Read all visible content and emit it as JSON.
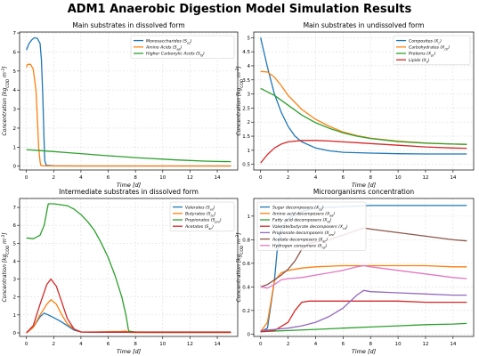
{
  "title": "ADM1 Anaerobic Digestion Model Simulation Results",
  "colors": {
    "blue": "#1f77b4",
    "orange": "#ff7f0e",
    "green": "#2ca02c",
    "red": "#d62728",
    "purple": "#9467bd",
    "brown": "#8c564b",
    "pink": "#e377c2",
    "gray": "#7f7f7f"
  },
  "chart_data": [
    {
      "type": "line",
      "title": "Main substrates in dissolved form",
      "xlabel": "Time [d]",
      "ylabel": "Concentration [kg_COD m^-3]",
      "xlim": [
        -0.5,
        15.5
      ],
      "ylim": [
        -0.2,
        7.05
      ],
      "xticks": [
        0,
        2,
        4,
        6,
        8,
        10,
        12,
        14
      ],
      "yticks": [
        0,
        1,
        2,
        3,
        4,
        5,
        6,
        7
      ],
      "grid": true,
      "legend": "top-right",
      "series": [
        {
          "name": "Monosaccharides (S_su)",
          "color": "#1f77b4",
          "x": [
            0,
            0.2,
            0.4,
            0.6,
            0.8,
            1.0,
            1.1,
            1.2,
            1.3,
            1.35,
            1.45,
            2,
            4,
            6,
            8,
            10,
            12,
            14,
            15
          ],
          "y": [
            6.1,
            6.45,
            6.65,
            6.75,
            6.72,
            6.45,
            5.6,
            3.8,
            1.2,
            0.3,
            0.05,
            0.02,
            0.01,
            0.01,
            0.01,
            0.01,
            0.01,
            0.01,
            0.01
          ]
        },
        {
          "name": "Amino Acids (S_aa)",
          "color": "#ff7f0e",
          "x": [
            0,
            0.1,
            0.3,
            0.5,
            0.7,
            0.8,
            0.9,
            1.0,
            1.05,
            1.2,
            2,
            4,
            6,
            8,
            10,
            12,
            14,
            15
          ],
          "y": [
            5.2,
            5.35,
            5.35,
            5.1,
            4.0,
            2.6,
            1.0,
            0.25,
            0.05,
            0.02,
            0.01,
            0.01,
            0.01,
            0.01,
            0.01,
            0.01,
            0.01,
            0.01
          ]
        },
        {
          "name": "Higher Carboxylic Acids (S_fa)",
          "color": "#2ca02c",
          "x": [
            0,
            1,
            2,
            3,
            4,
            5,
            6,
            7,
            8,
            9,
            10,
            11,
            12,
            13,
            14,
            15
          ],
          "y": [
            0.87,
            0.82,
            0.77,
            0.71,
            0.66,
            0.6,
            0.55,
            0.5,
            0.45,
            0.41,
            0.37,
            0.33,
            0.3,
            0.27,
            0.25,
            0.24
          ]
        }
      ]
    },
    {
      "type": "line",
      "title": "Main substrates in undissolved form",
      "xlabel": "Time [d]",
      "ylabel": "Concentration [kg_COD m^-3]",
      "xlim": [
        -0.5,
        15.5
      ],
      "ylim": [
        0.3,
        5.2
      ],
      "xticks": [
        0,
        2,
        4,
        6,
        8,
        10,
        12,
        14
      ],
      "yticks": [
        0.5,
        1,
        1.5,
        2,
        2.5,
        3,
        3.5,
        4,
        4.5,
        5
      ],
      "grid": true,
      "legend": "top-right",
      "series": [
        {
          "name": "Composites (X_c)",
          "color": "#1f77b4",
          "x": [
            0,
            0.5,
            1,
            1.5,
            2,
            2.5,
            3,
            4,
            5,
            6,
            8,
            10,
            12,
            14,
            15
          ],
          "y": [
            5.0,
            3.95,
            3.0,
            2.35,
            1.85,
            1.5,
            1.3,
            1.08,
            0.98,
            0.93,
            0.9,
            0.88,
            0.87,
            0.87,
            0.87
          ]
        },
        {
          "name": "Carbohydrates (X_ch)",
          "color": "#ff7f0e",
          "x": [
            0,
            0.5,
            1,
            1.5,
            2,
            3,
            4,
            5,
            6,
            7,
            8,
            10,
            12,
            14,
            15
          ],
          "y": [
            3.8,
            3.78,
            3.6,
            3.3,
            2.95,
            2.45,
            2.1,
            1.85,
            1.65,
            1.52,
            1.43,
            1.32,
            1.26,
            1.22,
            1.21
          ]
        },
        {
          "name": "Proteins (X_pr)",
          "color": "#2ca02c",
          "x": [
            0,
            1,
            2,
            3,
            4,
            5,
            6,
            7,
            8,
            10,
            12,
            14,
            15
          ],
          "y": [
            3.2,
            2.95,
            2.6,
            2.25,
            1.98,
            1.78,
            1.62,
            1.5,
            1.42,
            1.31,
            1.25,
            1.22,
            1.21
          ]
        },
        {
          "name": "Lipids (X_li)",
          "color": "#d62728",
          "x": [
            0,
            0.5,
            1,
            1.5,
            2,
            3,
            4,
            5,
            6,
            7,
            8,
            10,
            12,
            14,
            15
          ],
          "y": [
            0.55,
            0.85,
            1.08,
            1.22,
            1.3,
            1.35,
            1.35,
            1.33,
            1.3,
            1.27,
            1.24,
            1.18,
            1.12,
            1.08,
            1.07
          ]
        }
      ]
    },
    {
      "type": "line",
      "title": "Intermediate substrates in dissolved form",
      "xlabel": "Time [d]",
      "ylabel": "Concentration [kg_COD m^-3]",
      "xlim": [
        -0.5,
        15.5
      ],
      "ylim": [
        -0.2,
        7.5
      ],
      "xticks": [
        0,
        2,
        4,
        6,
        8,
        10,
        12,
        14
      ],
      "yticks": [
        0,
        1,
        2,
        3,
        4,
        5,
        6,
        7
      ],
      "grid": true,
      "legend": "top-right",
      "series": [
        {
          "name": "Valerates (S_va)",
          "color": "#1f77b4",
          "x": [
            0,
            0.5,
            1,
            1.3,
            1.6,
            2,
            2.5,
            3,
            3.5,
            4,
            5,
            7,
            10,
            14,
            15
          ],
          "y": [
            0.0,
            0.3,
            0.9,
            1.1,
            1.0,
            0.85,
            0.65,
            0.4,
            0.15,
            0.05,
            0.03,
            0.03,
            0.02,
            0.02,
            0.02
          ]
        },
        {
          "name": "Butyrates (S_bu)",
          "color": "#ff7f0e",
          "x": [
            0,
            0.5,
            1,
            1.5,
            1.8,
            2.2,
            2.6,
            3,
            3.5,
            4,
            5,
            7,
            7.3,
            7.5,
            8,
            10,
            14,
            15
          ],
          "y": [
            0.0,
            0.3,
            1.0,
            1.6,
            1.85,
            1.6,
            1.0,
            0.5,
            0.2,
            0.05,
            0.05,
            0.08,
            0.1,
            0.03,
            0.02,
            0.02,
            0.02,
            0.02
          ]
        },
        {
          "name": "Propionates (S_pro)",
          "color": "#2ca02c",
          "x": [
            0,
            0.5,
            1,
            1.3,
            1.6,
            2,
            2.5,
            3,
            3.5,
            4,
            4.5,
            5,
            5.5,
            6,
            6.5,
            7,
            7.3,
            7.5,
            8,
            10,
            14,
            15
          ],
          "y": [
            5.3,
            5.25,
            5.45,
            6.0,
            7.2,
            7.2,
            7.15,
            7.1,
            6.9,
            6.6,
            6.2,
            5.7,
            5.0,
            4.2,
            3.2,
            2.0,
            1.0,
            0.1,
            0.05,
            0.05,
            0.05,
            0.05
          ]
        },
        {
          "name": "Acetates (S_ac)",
          "color": "#d62728",
          "x": [
            0,
            0.5,
            1,
            1.5,
            1.8,
            2.2,
            2.6,
            3,
            3.5,
            4,
            5,
            7,
            10,
            14,
            15
          ],
          "y": [
            0.0,
            0.4,
            1.6,
            2.7,
            3.0,
            2.6,
            1.7,
            0.8,
            0.2,
            0.05,
            0.04,
            0.04,
            0.04,
            0.04,
            0.04
          ]
        }
      ]
    },
    {
      "type": "line",
      "title": "Microorganisms concentration",
      "xlabel": "Time [d]",
      "ylabel": "Concentration [kg_COD m^-3]",
      "xlim": [
        -0.5,
        15.5
      ],
      "ylim": [
        -0.02,
        1.15
      ],
      "xticks": [
        0,
        2,
        4,
        6,
        8,
        10,
        12,
        14
      ],
      "yticks": [
        0,
        0.2,
        0.4,
        0.6,
        0.8,
        1.0
      ],
      "grid": true,
      "legend": "top-left",
      "series": [
        {
          "name": "Sugar decomposers (X_su)",
          "color": "#1f77b4",
          "x": [
            0,
            0.5,
            1,
            1.2,
            1.5,
            2,
            3,
            4,
            6,
            8,
            10,
            12,
            14,
            15
          ],
          "y": [
            0.02,
            0.05,
            0.45,
            0.7,
            0.9,
            0.98,
            1.04,
            1.07,
            1.08,
            1.09,
            1.09,
            1.09,
            1.09,
            1.09
          ]
        },
        {
          "name": "Amino acid decomposers (X_aa)",
          "color": "#ff7f0e",
          "x": [
            0,
            0.5,
            1,
            1.5,
            2,
            3,
            4,
            6,
            8,
            10,
            12,
            14,
            15
          ],
          "y": [
            0.02,
            0.1,
            0.45,
            0.52,
            0.54,
            0.56,
            0.57,
            0.58,
            0.58,
            0.58,
            0.58,
            0.57,
            0.57
          ]
        },
        {
          "name": "Fatty acid decomposers (X_fa)",
          "color": "#2ca02c",
          "x": [
            0,
            2,
            4,
            6,
            8,
            10,
            12,
            14,
            15
          ],
          "y": [
            0.02,
            0.03,
            0.04,
            0.05,
            0.06,
            0.07,
            0.08,
            0.085,
            0.09
          ]
        },
        {
          "name": "Valerate/butyrate decomposers (X_c4)",
          "color": "#d62728",
          "x": [
            0,
            1,
            2,
            2.5,
            3,
            3.5,
            4,
            6,
            8,
            10,
            12,
            14,
            15
          ],
          "y": [
            0.02,
            0.03,
            0.1,
            0.2,
            0.27,
            0.28,
            0.28,
            0.28,
            0.28,
            0.28,
            0.27,
            0.27,
            0.27
          ]
        },
        {
          "name": "Propionate decomposers (X_pro)",
          "color": "#9467bd",
          "x": [
            0,
            1,
            2,
            3,
            4,
            5,
            6,
            7,
            7.5,
            8,
            10,
            12,
            14,
            15
          ],
          "y": [
            0.03,
            0.04,
            0.05,
            0.07,
            0.1,
            0.15,
            0.22,
            0.33,
            0.37,
            0.36,
            0.35,
            0.34,
            0.33,
            0.33
          ]
        },
        {
          "name": "Acetate decomposers (X_ac)",
          "color": "#8c564b",
          "x": [
            0,
            0.5,
            1,
            1.5,
            2,
            2.5,
            3,
            3.5,
            4,
            5,
            6,
            7,
            7.5,
            8,
            10,
            12,
            14,
            15
          ],
          "y": [
            0.4,
            0.42,
            0.46,
            0.5,
            0.55,
            0.62,
            0.72,
            0.77,
            0.78,
            0.8,
            0.84,
            0.88,
            0.9,
            0.89,
            0.86,
            0.83,
            0.8,
            0.79
          ]
        },
        {
          "name": "Hydrogen consumers (X_h2)",
          "color": "#e377c2",
          "x": [
            0,
            0.5,
            1,
            1.5,
            2,
            3,
            4,
            5,
            6,
            7,
            7.5,
            8,
            10,
            12,
            14,
            15
          ],
          "y": [
            0.4,
            0.39,
            0.42,
            0.46,
            0.47,
            0.48,
            0.5,
            0.52,
            0.54,
            0.57,
            0.58,
            0.57,
            0.54,
            0.51,
            0.48,
            0.47
          ]
        }
      ]
    }
  ]
}
